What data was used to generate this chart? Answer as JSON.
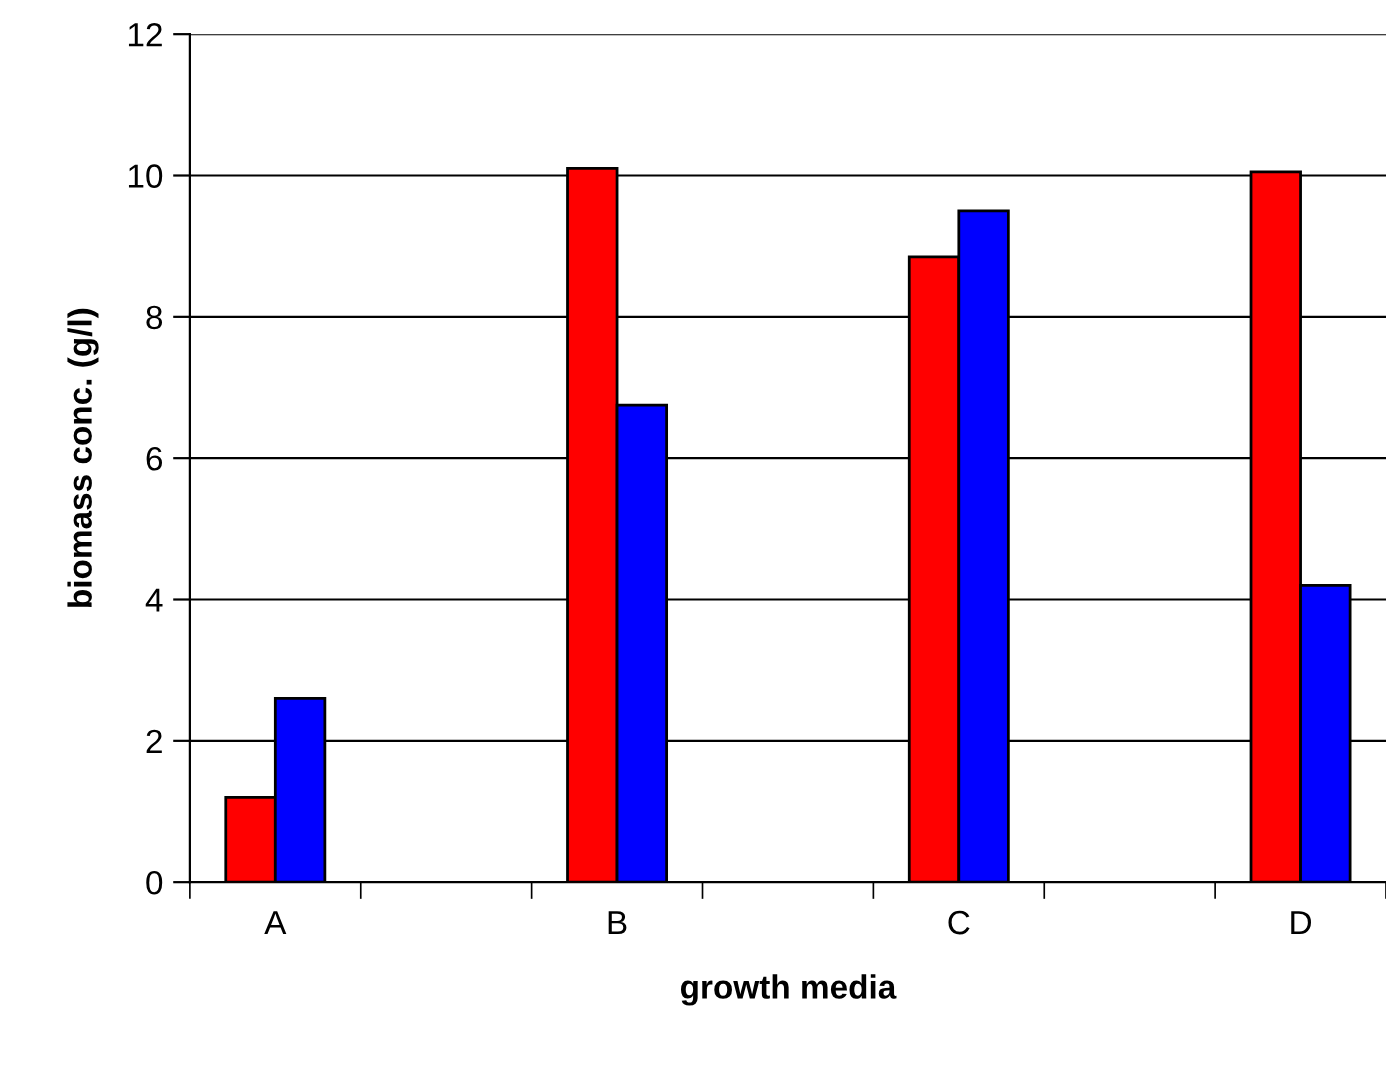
{
  "chart_data": {
    "type": "bar",
    "xlabel": "growth media",
    "ylabel": "biomass conc. (g/l)",
    "categories": [
      "A",
      null,
      "B",
      null,
      "C",
      null,
      "D"
    ],
    "series": [
      {
        "color": "#ff0000",
        "values": [
          1.2,
          null,
          10.1,
          null,
          8.85,
          null,
          10.05
        ]
      },
      {
        "color": "#0000ff",
        "values": [
          2.6,
          null,
          6.75,
          null,
          9.5,
          null,
          4.2
        ]
      }
    ],
    "ylim": [
      0,
      12
    ],
    "yticks": [
      0,
      2,
      4,
      6,
      8,
      10,
      12
    ],
    "grid": "y"
  }
}
